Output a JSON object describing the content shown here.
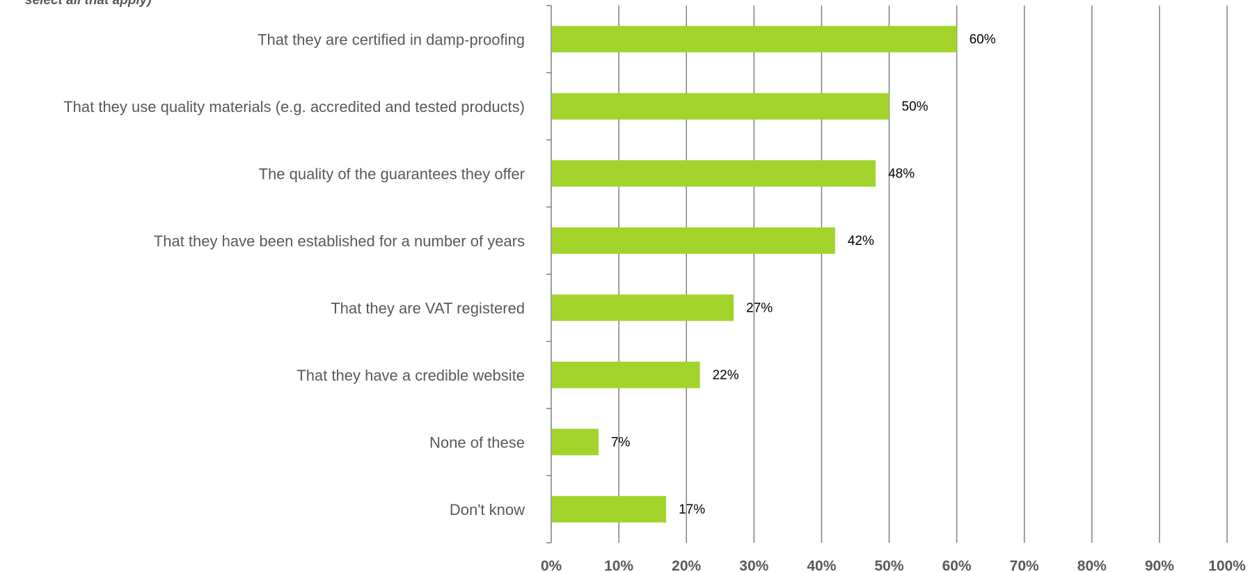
{
  "chart_data": {
    "type": "bar",
    "orientation": "horizontal",
    "subtitle": "select all that apply)",
    "categories": [
      "That they are certified in damp-proofing",
      "That they use quality materials (e.g. accredited and tested products)",
      "The quality of the guarantees they offer",
      "That they have been established for a number of years",
      "That they are VAT registered",
      "That they have a credible website",
      "None of these",
      "Don't know"
    ],
    "values": [
      60,
      50,
      48,
      42,
      27,
      22,
      7,
      17
    ],
    "data_labels": [
      "60%",
      "50%",
      "48%",
      "42%",
      "27%",
      "22%",
      "7%",
      "17%"
    ],
    "xlim": [
      0,
      100
    ],
    "xticks": [
      "0%",
      "10%",
      "20%",
      "30%",
      "40%",
      "50%",
      "60%",
      "70%",
      "80%",
      "90%",
      "100%"
    ],
    "grid": "vertical",
    "bar_color": "#a2d42c",
    "grid_color": "#7f7f7f",
    "label_color": "#595959"
  }
}
